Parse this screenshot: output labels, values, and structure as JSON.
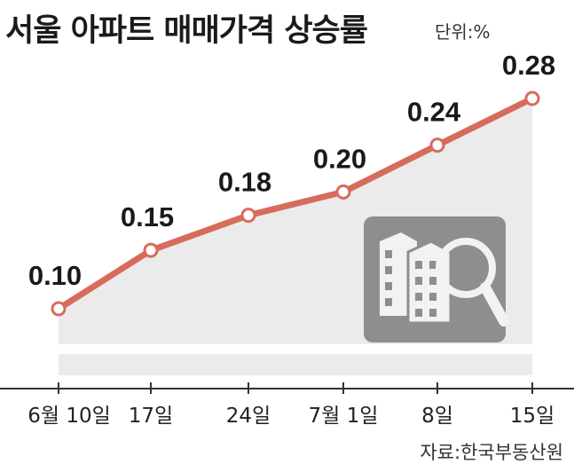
{
  "title": "서울 아파트 매매가격 상승률",
  "unit": "단위:%",
  "source": "자료:한국부동산원",
  "chart_data": {
    "type": "line",
    "title": "서울 아파트 매매가격 상승률",
    "unit": "단위:%",
    "categories": [
      "6월 10일",
      "17일",
      "24일",
      "7월 1일",
      "8일",
      "15일"
    ],
    "values": [
      0.1,
      0.15,
      0.18,
      0.2,
      0.24,
      0.28
    ],
    "value_labels": [
      "0.10",
      "0.15",
      "0.18",
      "0.20",
      "0.24",
      "0.28"
    ],
    "ylim": [
      0.03,
      0.3
    ],
    "grid": false,
    "colors": {
      "line": "#d76b5c",
      "area": "#ebebeb",
      "axis": "#333333",
      "icon_bg": "#8e8e8e"
    }
  }
}
